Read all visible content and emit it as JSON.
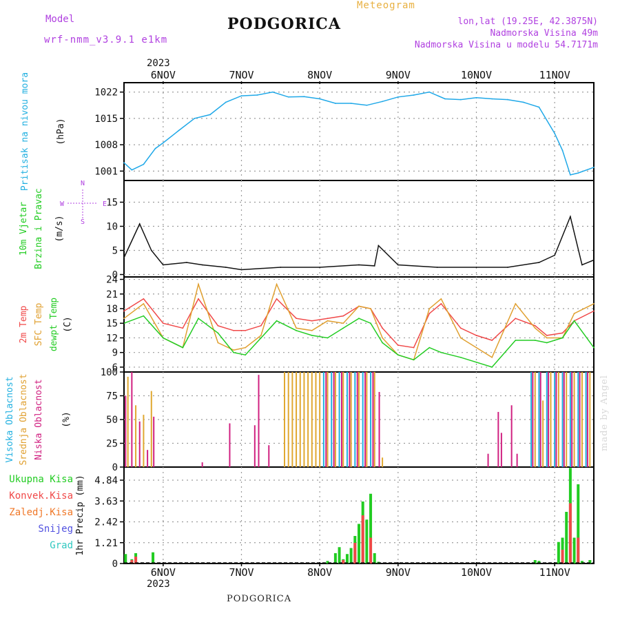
{
  "header": {
    "model_label": "Model",
    "model_name": "wrf-nmm_v3.9.1 e1km",
    "title": "PODGORICA",
    "meteogram": "Meteogram",
    "coords": "lon,lat (19.25E, 42.3875N)",
    "elev": "Nadmorska Visina 49m",
    "elev_model": "Nadmorska Visina u modelu 54.7171m",
    "footer": "PODGORICA",
    "watermark": "made by Angel",
    "year_top": "2023",
    "year_bottom": "2023",
    "colors": {
      "model": "#b040e0",
      "meteogram": "#e8b040",
      "coords": "#b040e0"
    }
  },
  "chart_data": [
    {
      "type": "line",
      "panel": "pressure",
      "ylabel_lines": [
        "Pritisak na nivou mora",
        "(hPa)"
      ],
      "ytick_labels": [
        "1022",
        "1015",
        "1008",
        "1001"
      ],
      "yticks": [
        1022,
        1015,
        1008,
        1001
      ],
      "ylim": [
        998.5,
        1024.5
      ],
      "x": [
        5.5,
        5.6,
        5.75,
        5.9,
        6.0,
        6.2,
        6.4,
        6.6,
        6.8,
        7.0,
        7.2,
        7.4,
        7.6,
        7.8,
        8.0,
        8.2,
        8.4,
        8.6,
        8.8,
        9.0,
        9.2,
        9.4,
        9.6,
        9.8,
        10.0,
        10.2,
        10.4,
        10.6,
        10.8,
        11.0,
        11.1,
        11.2,
        11.3,
        11.5
      ],
      "series": [
        {
          "values": [
            1003.2,
            1001.3,
            1002.8,
            1007.0,
            1008.5,
            1011.8,
            1015.0,
            1016.0,
            1019.3,
            1021.0,
            1021.2,
            1022.0,
            1020.7,
            1020.8,
            1020.2,
            1019.0,
            1019.0,
            1018.5,
            1019.5,
            1020.7,
            1021.2,
            1022.0,
            1020.2,
            1020.0,
            1020.5,
            1020.2,
            1020.0,
            1019.3,
            1018.0,
            1011.0,
            1006.5,
            1000.0,
            1000.5,
            1002.0
          ],
          "color": "#1fa8e8"
        }
      ],
      "grid": true
    },
    {
      "type": "line",
      "panel": "wind",
      "ylabel_lines": [
        "10m Vjetar",
        "Brzina i Pravac",
        "(m/s)"
      ],
      "compass": [
        "N",
        "S",
        "W",
        "E"
      ],
      "ytick_labels": [
        "15",
        "10",
        "5",
        "0"
      ],
      "yticks": [
        15,
        10,
        5,
        0
      ],
      "ylim": [
        -0.5,
        19.5
      ],
      "x": [
        5.5,
        5.7,
        5.85,
        6.0,
        6.3,
        6.5,
        6.8,
        7.0,
        7.5,
        8.0,
        8.5,
        8.7,
        8.75,
        9.0,
        9.5,
        10.0,
        10.4,
        10.8,
        11.0,
        11.2,
        11.35,
        11.5
      ],
      "series": [
        {
          "values": [
            3.5,
            10.5,
            5.0,
            2.0,
            2.5,
            2.0,
            1.5,
            1.0,
            1.5,
            1.5,
            2.0,
            1.8,
            6.0,
            2.0,
            1.5,
            1.5,
            1.5,
            2.5,
            4.0,
            12.0,
            2.0,
            3.0
          ],
          "color": "#111111"
        }
      ],
      "grid": true
    },
    {
      "type": "line",
      "panel": "temperature",
      "ylabel_lines": [
        "2m Temp",
        "SFC Temp",
        "dewpt Temp",
        "(C)"
      ],
      "ytick_labels": [
        "24",
        "21",
        "18",
        "15",
        "12",
        "9",
        "6"
      ],
      "yticks": [
        24,
        21,
        18,
        15,
        12,
        9,
        6
      ],
      "ylim": [
        5,
        24.5
      ],
      "x": [
        5.5,
        5.75,
        6.0,
        6.25,
        6.45,
        6.7,
        6.9,
        7.05,
        7.25,
        7.45,
        7.7,
        7.9,
        8.1,
        8.3,
        8.5,
        8.65,
        8.8,
        9.0,
        9.2,
        9.4,
        9.55,
        9.8,
        10.0,
        10.2,
        10.5,
        10.75,
        10.9,
        11.1,
        11.25,
        11.5
      ],
      "series": [
        {
          "name": "2m Temp",
          "color": "#f04848",
          "values": [
            17.5,
            20.0,
            15.0,
            14.0,
            20.0,
            14.5,
            13.5,
            13.5,
            14.5,
            20.0,
            16.0,
            15.5,
            16.0,
            16.5,
            18.5,
            18.0,
            14.0,
            10.5,
            10.0,
            17.0,
            19.0,
            14.0,
            12.5,
            11.5,
            16.0,
            14.5,
            12.5,
            13.0,
            15.5,
            17.5
          ]
        },
        {
          "name": "SFC Temp",
          "color": "#e0a030",
          "values": [
            16.0,
            19.0,
            12.0,
            10.0,
            23.0,
            11.0,
            9.5,
            10.0,
            12.5,
            23.0,
            14.0,
            13.5,
            15.5,
            15.0,
            18.5,
            18.0,
            12.0,
            8.5,
            7.5,
            18.0,
            20.0,
            12.0,
            10.0,
            8.0,
            19.0,
            14.0,
            12.0,
            12.0,
            17.0,
            19.0
          ]
        },
        {
          "name": "dewpt Temp",
          "color": "#22cc22",
          "values": [
            15.0,
            16.5,
            12.0,
            10.0,
            16.0,
            13.0,
            9.0,
            8.5,
            12.0,
            15.5,
            13.5,
            12.5,
            12.0,
            14.0,
            16.0,
            15.0,
            11.0,
            8.5,
            7.5,
            10.0,
            9.0,
            8.0,
            7.0,
            6.0,
            11.5,
            11.5,
            11.0,
            12.0,
            15.5,
            10.0
          ]
        }
      ],
      "grid": true
    },
    {
      "type": "bar",
      "panel": "clouds",
      "ylabel_lines": [
        "Visoka Oblacnost",
        "Srednja Oblacnost",
        "Niska Oblacnost",
        "(%)"
      ],
      "ytick_labels": [
        "100",
        "75",
        "50",
        "25",
        "0"
      ],
      "yticks": [
        100,
        75,
        50,
        25,
        0
      ],
      "ylim": [
        0,
        100
      ],
      "series": [
        {
          "name": "Visoka Oblacnost",
          "color": "#22b0e0",
          "x": [
            8.05,
            8.15,
            8.25,
            8.35,
            8.45,
            8.55,
            8.65,
            10.7,
            10.8,
            10.9,
            11.0,
            11.1,
            11.2,
            11.3,
            11.4
          ],
          "values": [
            100,
            100,
            100,
            100,
            100,
            100,
            100,
            100,
            100,
            100,
            100,
            100,
            100,
            100,
            100
          ]
        },
        {
          "name": "Srednja Oblacnost",
          "color": "#e0a830",
          "x": [
            5.55,
            5.65,
            5.75,
            5.85,
            7.55,
            7.6,
            7.65,
            7.7,
            7.75,
            7.8,
            7.85,
            7.9,
            7.95,
            8.0,
            8.1,
            8.2,
            8.3,
            8.4,
            8.5,
            8.6,
            8.7,
            8.8,
            10.75,
            10.85,
            10.95,
            11.05,
            11.15,
            11.25,
            11.35,
            11.45
          ],
          "values": [
            95,
            65,
            55,
            80,
            100,
            100,
            100,
            100,
            100,
            100,
            100,
            100,
            100,
            100,
            100,
            100,
            100,
            100,
            100,
            100,
            100,
            10,
            100,
            70,
            100,
            100,
            100,
            100,
            100,
            100
          ]
        },
        {
          "name": "Niska Oblacnost",
          "color": "#d02080",
          "x": [
            5.52,
            5.6,
            5.7,
            5.8,
            5.88,
            6.5,
            6.85,
            7.17,
            7.22,
            7.35,
            8.08,
            8.18,
            8.28,
            8.38,
            8.48,
            8.58,
            8.68,
            8.76,
            10.15,
            10.28,
            10.32,
            10.45,
            10.52,
            10.72,
            10.82,
            10.92,
            11.02,
            11.12,
            11.22,
            11.32,
            11.42
          ],
          "values": [
            75,
            100,
            48,
            18,
            53,
            5,
            46,
            44,
            97,
            23,
            100,
            100,
            100,
            100,
            100,
            100,
            100,
            79,
            14,
            58,
            36,
            65,
            14,
            100,
            100,
            100,
            100,
            100,
            100,
            100,
            100
          ]
        }
      ],
      "grid": true
    },
    {
      "type": "bar",
      "panel": "precipitation",
      "ylabel_lines": [
        "1hr Precip (mm)"
      ],
      "legend": [
        {
          "name": "Ukupna Kisa",
          "color": "#22cc22"
        },
        {
          "name": "Konvek.Kisa",
          "color": "#f04848"
        },
        {
          "name": "Zaledj.Kisa",
          "color": "#f07828"
        },
        {
          "name": "Snijeg",
          "color": "#5050e0"
        },
        {
          "name": "Grad",
          "color": "#30c8c0"
        }
      ],
      "ytick_labels": [
        "4.84",
        "3.63",
        "2.42",
        "1.21",
        "0"
      ],
      "yticks": [
        4.84,
        3.63,
        2.42,
        1.21,
        0
      ],
      "ylim": [
        0,
        5.6
      ],
      "series": [
        {
          "name": "Ukupna Kisa",
          "color": "#22cc22",
          "x": [
            5.52,
            5.6,
            5.65,
            5.87,
            8.1,
            8.2,
            8.25,
            8.3,
            8.35,
            8.4,
            8.45,
            8.5,
            8.55,
            8.6,
            8.65,
            8.7,
            8.75,
            10.75,
            10.8,
            11.05,
            11.1,
            11.15,
            11.2,
            11.25,
            11.3,
            11.35,
            11.45
          ],
          "values": [
            0.55,
            0.25,
            0.6,
            0.65,
            0.15,
            0.6,
            0.95,
            0.25,
            0.55,
            0.9,
            1.6,
            2.3,
            3.6,
            2.55,
            4.05,
            0.6,
            0.1,
            0.2,
            0.15,
            1.25,
            1.5,
            3.0,
            5.55,
            1.5,
            4.6,
            0.15,
            0.2
          ]
        },
        {
          "name": "Konvek.Kisa",
          "color": "#f04848",
          "x": [
            5.6,
            5.65,
            8.3,
            8.45,
            8.55,
            8.65,
            11.1,
            11.2,
            11.3
          ],
          "values": [
            0.2,
            0.4,
            0.2,
            1.2,
            2.8,
            1.5,
            0.8,
            3.5,
            1.5
          ]
        }
      ],
      "grid": true
    }
  ],
  "x_axis": {
    "tick_labels": [
      "6NOV",
      "7NOV",
      "8NOV",
      "9NOV",
      "10NOV",
      "11NOV"
    ],
    "days": [
      6,
      7,
      8,
      9,
      10,
      11
    ],
    "range": [
      5.5,
      11.5
    ]
  }
}
